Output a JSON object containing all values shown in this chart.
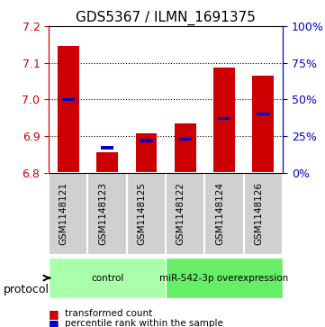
{
  "title": "GDS5367 / ILMN_1691375",
  "samples": [
    "GSM1148121",
    "GSM1148123",
    "GSM1148125",
    "GSM1148122",
    "GSM1148124",
    "GSM1148126"
  ],
  "transformed_counts": [
    7.145,
    6.855,
    6.907,
    6.935,
    7.088,
    7.065
  ],
  "percentile_ranks": [
    50,
    17,
    22,
    23,
    37,
    40
  ],
  "ymin": 6.8,
  "ymax": 7.2,
  "yticks": [
    6.8,
    6.9,
    7.0,
    7.1,
    7.2
  ],
  "right_yticks": [
    0,
    25,
    50,
    75,
    100
  ],
  "bar_color": "#cc0000",
  "percentile_color": "#0000cc",
  "bar_width": 0.55,
  "groups": [
    {
      "label": "control",
      "indices": [
        0,
        1,
        2
      ],
      "color": "#aaffaa"
    },
    {
      "label": "miR-542-3p overexpression",
      "indices": [
        3,
        4,
        5
      ],
      "color": "#66ee66"
    }
  ],
  "protocol_label": "protocol",
  "legend_items": [
    {
      "color": "#cc0000",
      "label": "transformed count"
    },
    {
      "color": "#0000cc",
      "label": "percentile rank within the sample"
    }
  ],
  "background_color": "#ffffff",
  "plot_bg_color": "#ffffff",
  "gridline_style": "dotted",
  "gridline_color": "#000000",
  "left_axis_color": "#cc0000",
  "right_axis_color": "#0000cc"
}
